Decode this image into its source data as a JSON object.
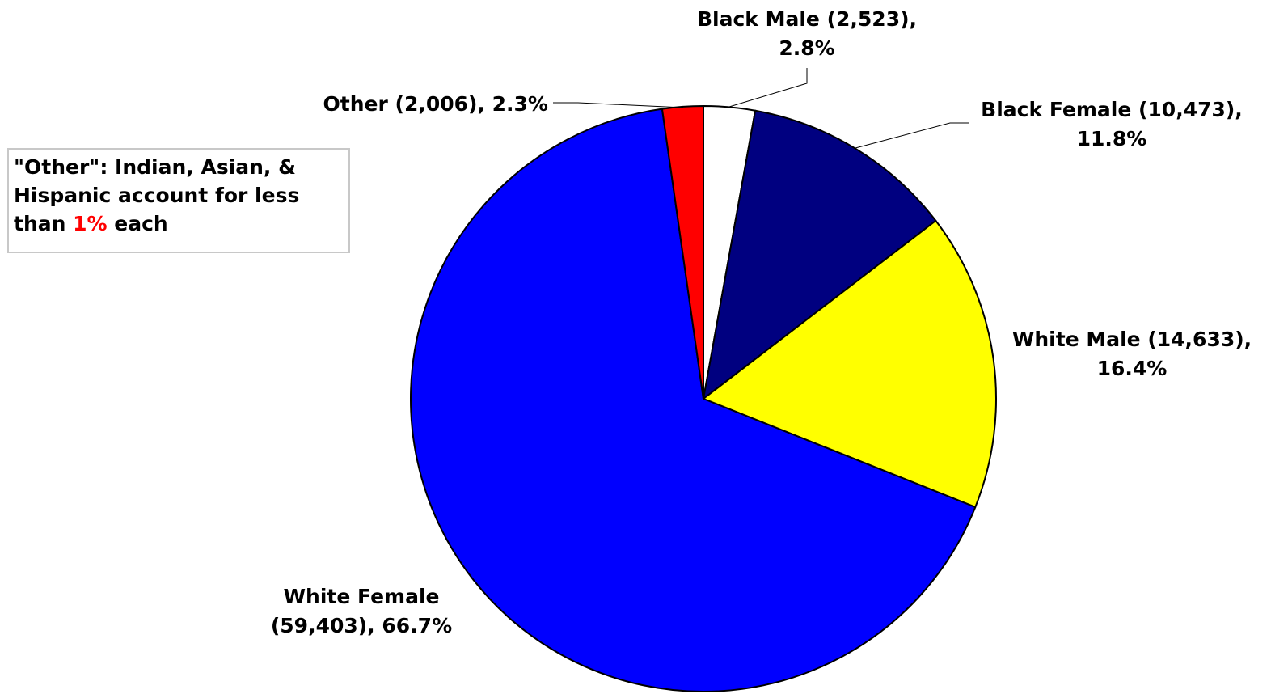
{
  "chart_data": {
    "type": "pie",
    "slices": [
      {
        "label_lines": [
          "Black Male (2,523),",
          "2.8%"
        ],
        "category": "Black Male",
        "count": 2523,
        "percent": 2.8,
        "color": "#ffffff"
      },
      {
        "label_lines": [
          "Black Female (10,473),",
          "11.8%"
        ],
        "category": "Black Female",
        "count": 10473,
        "percent": 11.8,
        "color": "#000080"
      },
      {
        "label_lines": [
          "White Male (14,633),",
          "16.4%"
        ],
        "category": "White Male",
        "count": 14633,
        "percent": 16.4,
        "color": "#ffff00"
      },
      {
        "label_lines": [
          "White Female",
          "(59,403), 66.7%"
        ],
        "category": "White Female",
        "count": 59403,
        "percent": 66.7,
        "color": "#0000ff"
      },
      {
        "label_lines": [
          "Other (2,006), 2.3%"
        ],
        "category": "Other",
        "count": 2006,
        "percent": 2.3,
        "color": "#ff0000"
      }
    ]
  },
  "note": {
    "line1": "\"Other\": Indian, Asian, &",
    "line2": "Hispanic account for less",
    "line3_pre": "than ",
    "line3_highlight": "1%",
    "line3_post": " each",
    "highlight_color": "#ff0000"
  }
}
